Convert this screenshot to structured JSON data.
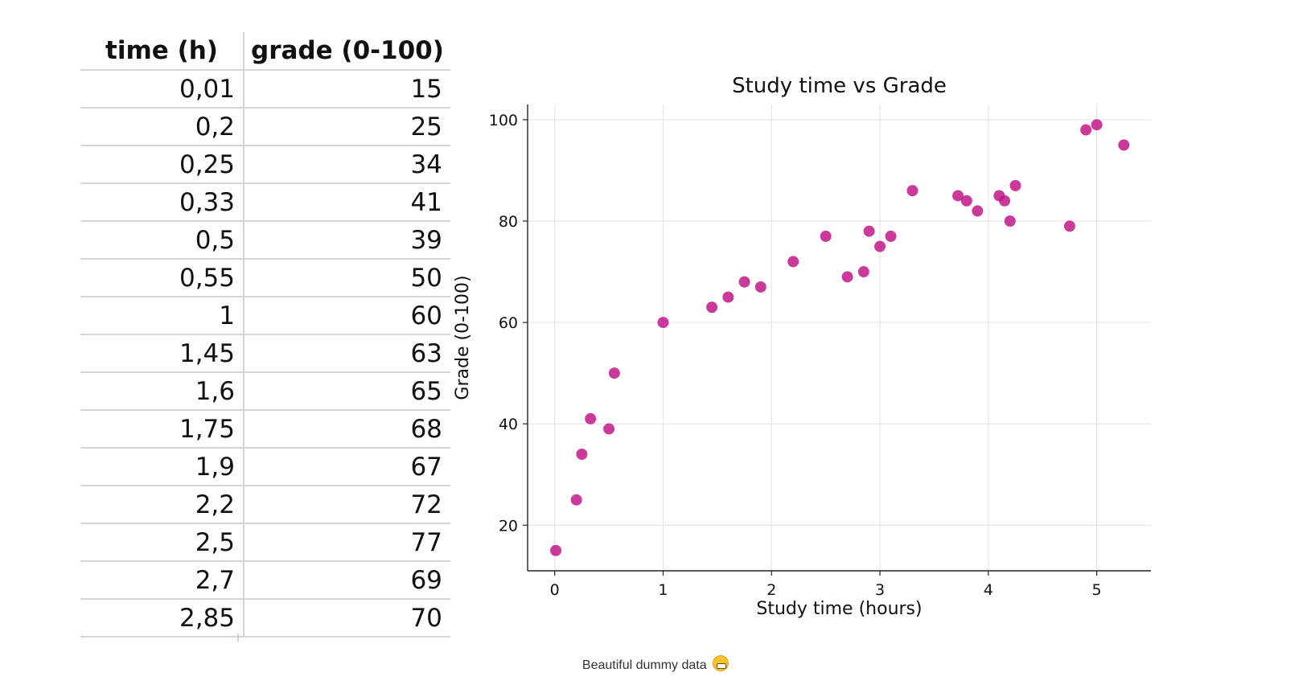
{
  "table": {
    "headers": [
      "time (h)",
      "grade (0-100)"
    ],
    "rows": [
      [
        "0,01",
        "15"
      ],
      [
        "0,2",
        "25"
      ],
      [
        "0,25",
        "34"
      ],
      [
        "0,33",
        "41"
      ],
      [
        "0,5",
        "39"
      ],
      [
        "0,55",
        "50"
      ],
      [
        "1",
        "60"
      ],
      [
        "1,45",
        "63"
      ],
      [
        "1,6",
        "65"
      ],
      [
        "1,75",
        "68"
      ],
      [
        "1,9",
        "67"
      ],
      [
        "2,2",
        "72"
      ],
      [
        "2,5",
        "77"
      ],
      [
        "2,7",
        "69"
      ],
      [
        "2,85",
        "70"
      ]
    ]
  },
  "chart_data": {
    "type": "scatter",
    "title": "Study time vs Grade",
    "xlabel": "Study time (hours)",
    "ylabel": "Grade (0-100)",
    "xlim": [
      -0.25,
      5.5
    ],
    "ylim": [
      11,
      103
    ],
    "xticks": [
      0,
      1,
      2,
      3,
      4,
      5
    ],
    "yticks": [
      20,
      40,
      60,
      80,
      100
    ],
    "grid": true,
    "marker_color": "#c2188a",
    "x": [
      0.01,
      0.2,
      0.25,
      0.33,
      0.5,
      0.55,
      1,
      1.45,
      1.6,
      1.75,
      1.9,
      2.2,
      2.5,
      2.7,
      2.85,
      2.9,
      3.0,
      3.1,
      3.3,
      3.72,
      3.8,
      3.9,
      4.1,
      4.15,
      4.2,
      4.25,
      4.75,
      4.9,
      5.0,
      5.25
    ],
    "y": [
      15,
      25,
      34,
      41,
      39,
      50,
      60,
      63,
      65,
      68,
      67,
      72,
      77,
      69,
      70,
      78,
      75,
      77,
      86,
      85,
      84,
      82,
      85,
      84,
      80,
      87,
      79,
      98,
      99,
      95
    ]
  },
  "caption": {
    "text": "Beautiful dummy data",
    "emoji_icon": "grinning-face-icon"
  }
}
